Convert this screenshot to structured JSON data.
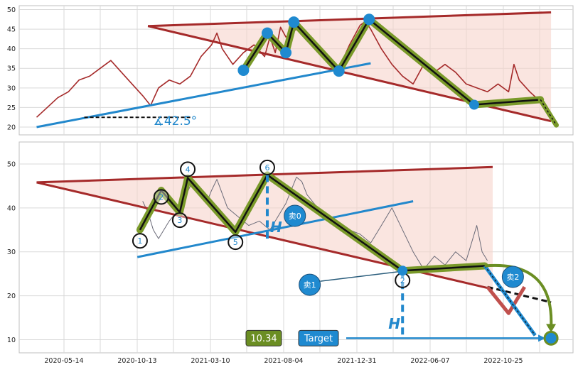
{
  "colors": {
    "background": "#ffffff",
    "grid": "#d9d9d9",
    "frame": "#bfbfbf",
    "price_line_top": "#a52a2a",
    "price_line_bottom": "#6b6b78",
    "trend_red": "#a52a2a",
    "trend_blue": "#2288cc",
    "wedge_fill": "#f6d3cc",
    "zigzag_outer": "#7a9a2a",
    "zigzag_inner": "#111111",
    "node_blue": "#1f8ad0",
    "target_green": "#6b8e23",
    "down_red": "#c0504d",
    "tick_text": "#222222"
  },
  "chart_data": [
    {
      "type": "line",
      "panel": "top",
      "x_ticks": [
        "2020-05-14",
        "2020-10-13",
        "2021-03-10",
        "2021-08-04",
        "2021-12-31",
        "2022-06-07",
        "2022-10-25"
      ],
      "ylim": [
        18,
        51
      ],
      "y_ticks": [
        20,
        25,
        30,
        35,
        40,
        45,
        50
      ],
      "xlim": [
        0,
        100
      ],
      "grid": true,
      "price_series": [
        [
          1,
          22.5
        ],
        [
          3,
          25
        ],
        [
          5,
          27.5
        ],
        [
          7,
          29
        ],
        [
          9,
          32
        ],
        [
          11,
          33
        ],
        [
          13,
          35
        ],
        [
          15,
          37
        ],
        [
          17,
          34
        ],
        [
          19,
          31
        ],
        [
          21,
          28
        ],
        [
          22.5,
          25.5
        ],
        [
          24,
          30
        ],
        [
          26,
          32
        ],
        [
          28,
          31
        ],
        [
          30,
          33
        ],
        [
          32,
          38
        ],
        [
          34,
          41
        ],
        [
          35,
          44
        ],
        [
          36,
          40
        ],
        [
          38,
          36
        ],
        [
          40,
          39
        ],
        [
          42,
          41
        ],
        [
          44,
          38
        ],
        [
          45,
          43
        ],
        [
          46,
          39
        ],
        [
          47,
          45.5
        ],
        [
          48,
          43
        ],
        [
          50,
          45
        ],
        [
          52,
          42
        ],
        [
          54,
          40
        ],
        [
          56,
          37
        ],
        [
          58,
          35
        ],
        [
          60,
          41
        ],
        [
          62,
          46
        ],
        [
          63,
          47
        ],
        [
          64,
          45
        ],
        [
          66,
          40
        ],
        [
          68,
          36
        ],
        [
          70,
          33
        ],
        [
          72,
          31
        ],
        [
          74,
          36
        ],
        [
          76,
          34
        ],
        [
          78,
          36
        ],
        [
          80,
          34
        ],
        [
          82,
          31
        ],
        [
          84,
          30
        ],
        [
          86,
          29
        ],
        [
          88,
          31
        ],
        [
          90,
          29
        ],
        [
          91,
          36
        ],
        [
          92,
          32
        ],
        [
          94,
          29
        ],
        [
          96,
          26.5
        ]
      ],
      "upper_line": [
        [
          22,
          45.8
        ],
        [
          98,
          49.3
        ]
      ],
      "lower_line": [
        [
          22,
          45.8
        ],
        [
          98,
          21.5
        ]
      ],
      "wedge_fill_polygon": [
        [
          22,
          45.8
        ],
        [
          98,
          49.3
        ],
        [
          98,
          21.5
        ]
      ],
      "support_line": [
        [
          1,
          20
        ],
        [
          64,
          36.3
        ]
      ],
      "dashed_base": [
        [
          10,
          22.5
        ],
        [
          30,
          22.5
        ]
      ],
      "angle_label": "∡42.5°",
      "zigzag_points": [
        [
          40,
          34.5
        ],
        [
          44.5,
          44
        ],
        [
          48,
          39
        ],
        [
          49.5,
          46.8
        ],
        [
          58,
          34.3
        ],
        [
          63.7,
          47.5
        ],
        [
          83.5,
          25.7
        ],
        [
          96,
          27
        ]
      ],
      "zigzag_dotted_end": [
        [
          96,
          27
        ],
        [
          99,
          20.5
        ]
      ]
    },
    {
      "type": "line",
      "panel": "bottom",
      "x_ticks": [
        "2020-05-14",
        "2020-10-13",
        "2021-03-10",
        "2021-08-04",
        "2021-12-31",
        "2022-06-07",
        "2022-10-25"
      ],
      "ylim": [
        7,
        55
      ],
      "y_ticks": [
        10,
        20,
        30,
        40,
        50
      ],
      "xlim": [
        0,
        100
      ],
      "grid": true,
      "price_series": [
        [
          21,
          41.5
        ],
        [
          22,
          39
        ],
        [
          23,
          35
        ],
        [
          24,
          33
        ],
        [
          26,
          37
        ],
        [
          28,
          40
        ],
        [
          30,
          45
        ],
        [
          32,
          43
        ],
        [
          33,
          41
        ],
        [
          34,
          44
        ],
        [
          35,
          46.5
        ],
        [
          37,
          40
        ],
        [
          39,
          38
        ],
        [
          41,
          36
        ],
        [
          43,
          37
        ],
        [
          45,
          35
        ],
        [
          47,
          39
        ],
        [
          48,
          41
        ],
        [
          49,
          44
        ],
        [
          50,
          47
        ],
        [
          51,
          46
        ],
        [
          52,
          43
        ],
        [
          54,
          40
        ],
        [
          56,
          38
        ],
        [
          58,
          36
        ],
        [
          60,
          35
        ],
        [
          62,
          34
        ],
        [
          64,
          32
        ],
        [
          66,
          36
        ],
        [
          68,
          40
        ],
        [
          70,
          35
        ],
        [
          72,
          30
        ],
        [
          74,
          26
        ],
        [
          76,
          29
        ],
        [
          78,
          27
        ],
        [
          80,
          30
        ],
        [
          82,
          28
        ],
        [
          83,
          32
        ],
        [
          84,
          36
        ],
        [
          85,
          30
        ],
        [
          86,
          28
        ]
      ],
      "upper_line": [
        [
          1,
          45.8
        ],
        [
          87,
          49.3
        ]
      ],
      "lower_line": [
        [
          1,
          45.8
        ],
        [
          87,
          21.5
        ]
      ],
      "wedge_fill_polygon": [
        [
          1,
          45.8
        ],
        [
          87,
          49.3
        ],
        [
          87,
          21.5
        ]
      ],
      "support_line": [
        [
          20,
          28.8
        ],
        [
          72,
          41.5
        ]
      ],
      "zigzag_points": [
        [
          20.5,
          35
        ],
        [
          24.5,
          44
        ],
        [
          28,
          39
        ],
        [
          29.5,
          46.8
        ],
        [
          38.5,
          34.5
        ],
        [
          44.5,
          47.5
        ],
        [
          70,
          25.7
        ],
        [
          85.5,
          26.8
        ]
      ],
      "pattern_labels": [
        "1",
        "2",
        "3",
        "4",
        "5",
        "6",
        "2"
      ],
      "sell_labels": [
        "卖0",
        "卖1",
        "卖2"
      ],
      "h_label": "H",
      "target_price": "10.34",
      "target_text": "Target",
      "target_y": 10.34,
      "dashed_projection": [
        [
          86,
          22
        ],
        [
          98,
          18.5
        ]
      ],
      "red_down_move": [
        [
          86,
          22
        ],
        [
          90,
          16
        ],
        [
          93,
          22
        ]
      ],
      "dotted_blue_move": [
        [
          85.5,
          26.8
        ],
        [
          95,
          11
        ]
      ]
    }
  ]
}
